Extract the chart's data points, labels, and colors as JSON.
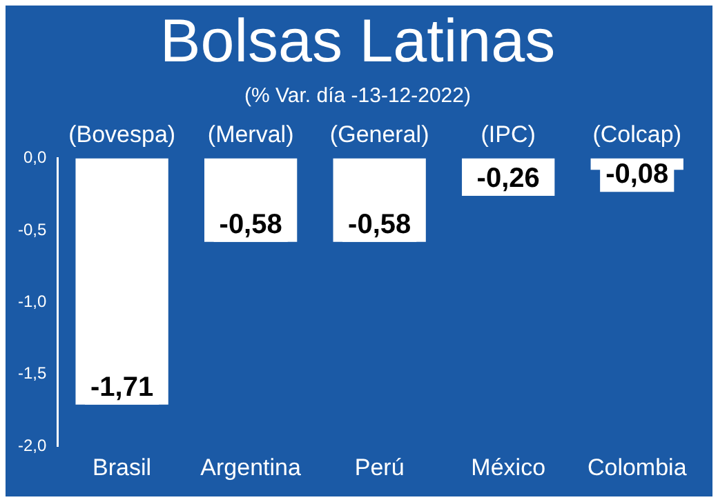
{
  "chart_data": {
    "type": "bar",
    "title": "Bolsas Latinas",
    "subtitle": "(% Var. día -13-12-2022)",
    "categories": [
      "Brasil",
      "Argentina",
      "Perú",
      "México",
      "Colombia"
    ],
    "values": [
      -1.71,
      -0.58,
      -0.58,
      -0.26,
      -0.08
    ],
    "value_labels": [
      "-1,71",
      "-0,58",
      "-0,58",
      "-0,26",
      "-0,08"
    ],
    "color": "#ffffff",
    "ylim": [
      -2,
      0
    ],
    "yticks": [
      {
        "value": 0,
        "label": "0,0"
      },
      {
        "value": -0.5,
        "label": "-0,5"
      },
      {
        "value": -1,
        "label": "-1,0"
      },
      {
        "value": -1.5,
        "label": "-1,5"
      },
      {
        "value": -2,
        "label": "-2,0"
      }
    ],
    "annotations": [
      "(Bovespa)",
      "(Merval)",
      "(General)",
      "(IPC)",
      "(Colcap)"
    ],
    "grid": false,
    "legend": false
  }
}
